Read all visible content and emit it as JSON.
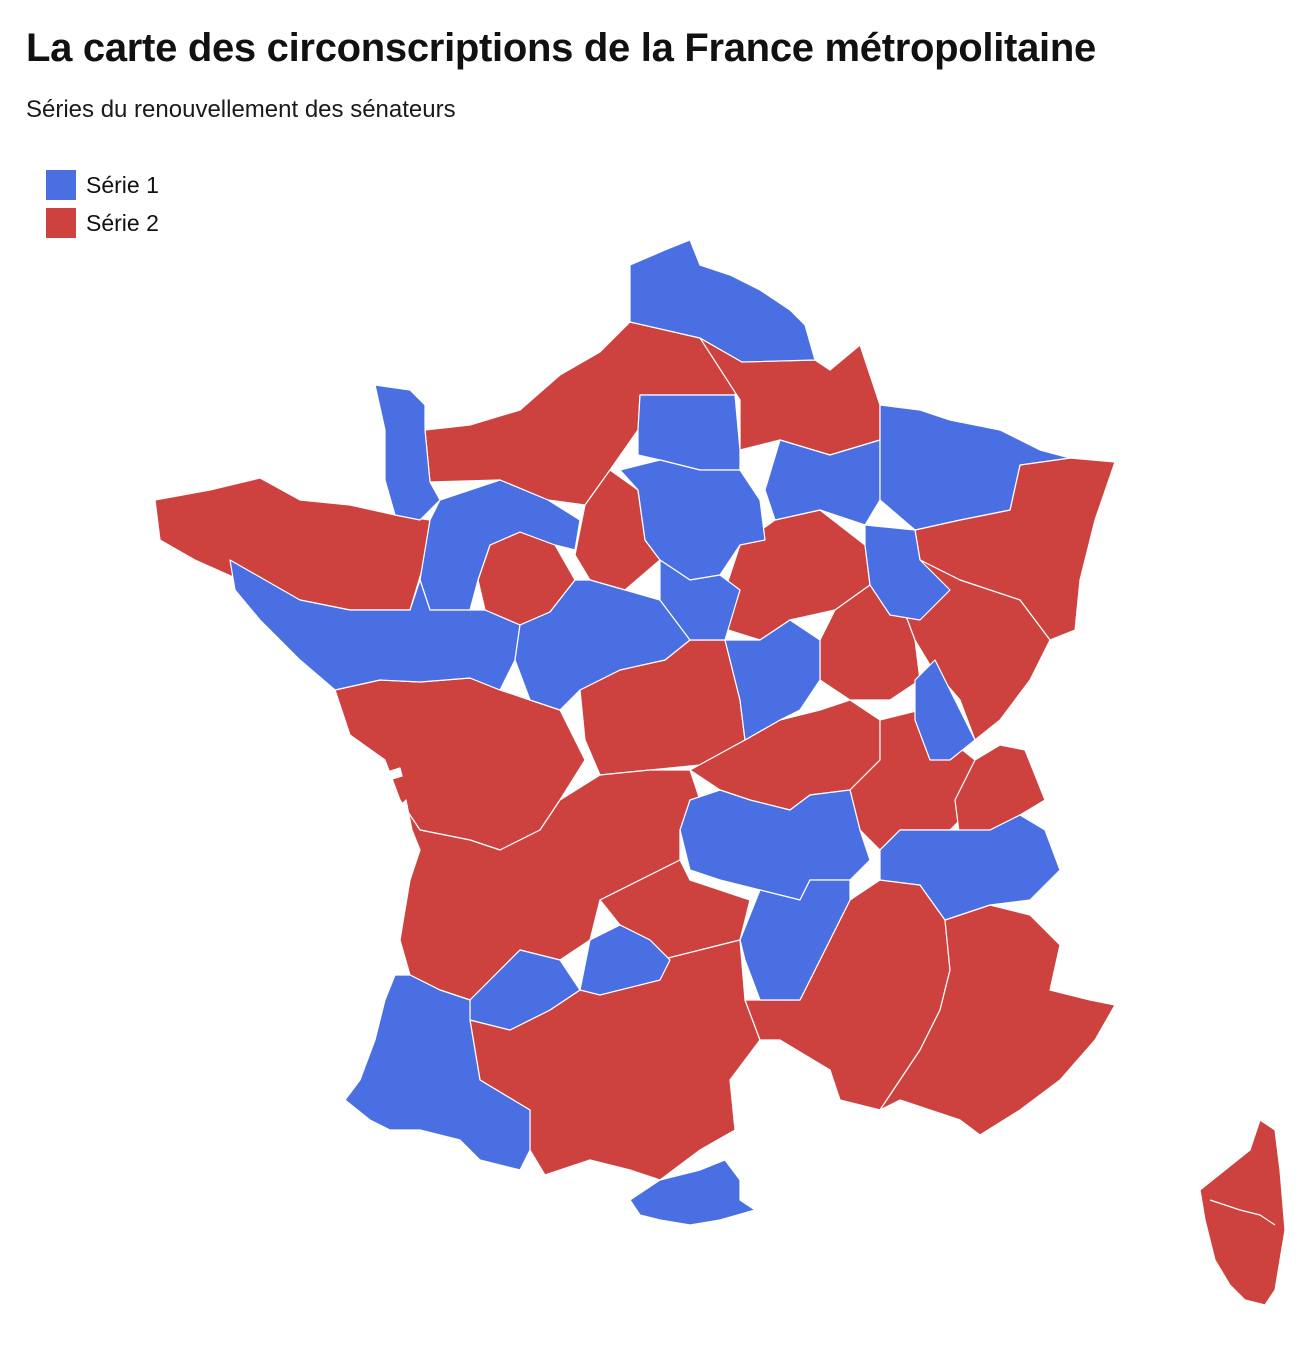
{
  "header": {
    "title": "La carte des circonscriptions de la France métropolitaine",
    "subtitle": "Séries du renouvellement des sénateurs"
  },
  "legend": {
    "items": [
      {
        "label": "Série 1",
        "color": "#4a6fe3"
      },
      {
        "label": "Série 2",
        "color": "#cd423f"
      }
    ]
  },
  "map": {
    "colors": {
      "serie_1": "#4a6fe3",
      "serie_2": "#cd423f",
      "border": "#ffffff"
    }
  }
}
